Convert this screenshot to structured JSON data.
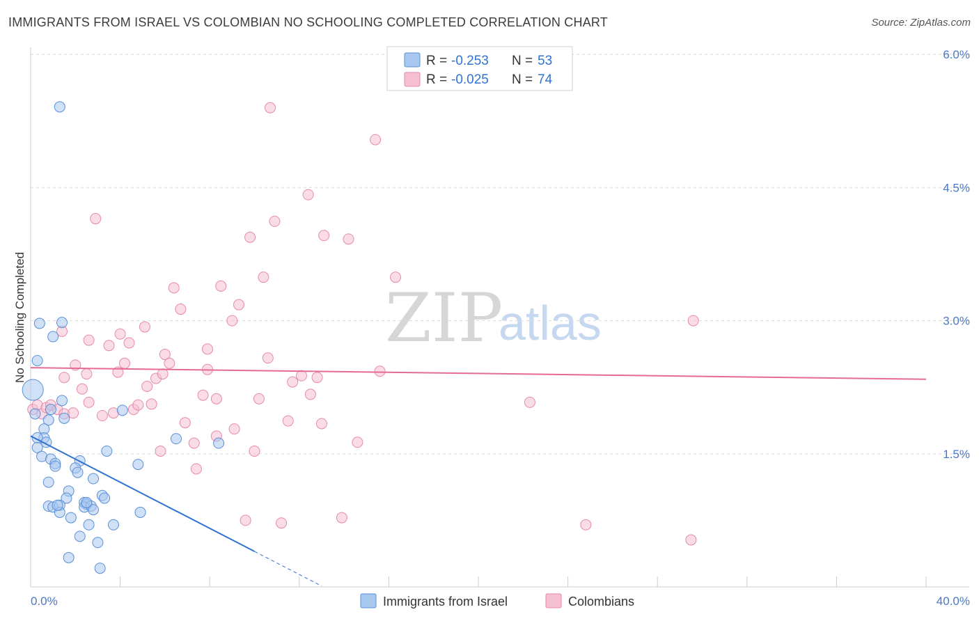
{
  "title": "IMMIGRANTS FROM ISRAEL VS COLOMBIAN NO SCHOOLING COMPLETED CORRELATION CHART",
  "source": "Source: ZipAtlas.com",
  "watermark": {
    "zip": "ZIP",
    "atlas": "atlas"
  },
  "colors": {
    "blue_fill": "#a9c8f0",
    "blue_stroke": "#5a8fd6",
    "blue_line": "#2f73d2",
    "pink_fill": "#f6bfd2",
    "pink_stroke": "#e58aaa",
    "pink_line": "#e56b96",
    "grid": "#dddddd",
    "axis_label": "#4a78c4"
  },
  "legend": {
    "r_label": "R =",
    "n_label": "N =",
    "series1": {
      "r": "-0.253",
      "n": "53"
    },
    "series2": {
      "r": "-0.025",
      "n": "74"
    }
  },
  "chart_data": {
    "type": "scatter",
    "title": "IMMIGRANTS FROM ISRAEL VS COLOMBIAN NO SCHOOLING COMPLETED CORRELATION CHART",
    "xlabel": "",
    "ylabel": "No Schooling Completed",
    "xlim": [
      0,
      40
    ],
    "ylim": [
      0,
      6.3
    ],
    "x_tick_labels": [
      "0.0%",
      "40.0%"
    ],
    "y_ticks": [
      1.5,
      3.0,
      4.5,
      6.0
    ],
    "y_tick_labels": [
      "1.5%",
      "3.0%",
      "4.5%",
      "6.0%"
    ],
    "series": [
      {
        "name": "Immigrants from Israel",
        "color": "blue",
        "regression": {
          "x0": 0.0,
          "y0": 1.7,
          "x1": 10.0,
          "y1": 0.4,
          "dash_to_x": 13.0
        },
        "points": [
          [
            0.1,
            2.22
          ],
          [
            1.3,
            5.41
          ],
          [
            0.3,
            2.55
          ],
          [
            0.4,
            2.97
          ],
          [
            1.4,
            2.98
          ],
          [
            1.0,
            2.82
          ],
          [
            1.4,
            2.1
          ],
          [
            1.5,
            1.9
          ],
          [
            0.8,
            1.88
          ],
          [
            0.6,
            1.78
          ],
          [
            0.6,
            1.68
          ],
          [
            0.3,
            1.68
          ],
          [
            0.7,
            1.63
          ],
          [
            0.3,
            1.57
          ],
          [
            0.5,
            1.47
          ],
          [
            0.9,
            1.44
          ],
          [
            1.1,
            1.39
          ],
          [
            1.1,
            1.36
          ],
          [
            2.2,
            1.42
          ],
          [
            2.0,
            1.34
          ],
          [
            2.1,
            1.29
          ],
          [
            0.8,
            1.18
          ],
          [
            2.8,
            1.22
          ],
          [
            3.4,
            1.53
          ],
          [
            4.1,
            1.99
          ],
          [
            4.8,
            1.38
          ],
          [
            6.5,
            1.67
          ],
          [
            8.4,
            1.62
          ],
          [
            1.7,
            1.08
          ],
          [
            1.6,
            1.0
          ],
          [
            3.2,
            1.03
          ],
          [
            3.3,
            1.0
          ],
          [
            0.8,
            0.91
          ],
          [
            1.0,
            0.9
          ],
          [
            1.3,
            0.92
          ],
          [
            2.4,
            0.95
          ],
          [
            2.5,
            0.93
          ],
          [
            2.4,
            0.9
          ],
          [
            2.7,
            0.91
          ],
          [
            2.8,
            0.87
          ],
          [
            1.3,
            0.84
          ],
          [
            1.8,
            0.78
          ],
          [
            4.9,
            0.84
          ],
          [
            2.6,
            0.7
          ],
          [
            3.7,
            0.7
          ],
          [
            2.2,
            0.57
          ],
          [
            3.0,
            0.5
          ],
          [
            1.7,
            0.33
          ],
          [
            3.1,
            0.21
          ],
          [
            0.2,
            1.95
          ],
          [
            0.9,
            2.0
          ],
          [
            2.5,
            0.95
          ],
          [
            1.2,
            0.92
          ]
        ]
      },
      {
        "name": "Colombians",
        "color": "pink",
        "regression": {
          "x0": 0.0,
          "y0": 2.47,
          "x1": 40.0,
          "y1": 2.34
        },
        "points": [
          [
            0.1,
            2.0
          ],
          [
            0.3,
            2.05
          ],
          [
            0.5,
            1.95
          ],
          [
            0.7,
            2.02
          ],
          [
            0.9,
            2.05
          ],
          [
            1.2,
            2.0
          ],
          [
            1.5,
            1.95
          ],
          [
            1.9,
            1.96
          ],
          [
            2.3,
            2.23
          ],
          [
            2.5,
            2.4
          ],
          [
            2.0,
            2.5
          ],
          [
            1.5,
            2.36
          ],
          [
            2.6,
            2.78
          ],
          [
            2.6,
            2.08
          ],
          [
            3.2,
            1.93
          ],
          [
            3.5,
            2.72
          ],
          [
            3.7,
            1.96
          ],
          [
            3.9,
            2.42
          ],
          [
            4.0,
            2.85
          ],
          [
            4.2,
            2.52
          ],
          [
            4.4,
            2.75
          ],
          [
            4.6,
            2.0
          ],
          [
            4.8,
            2.05
          ],
          [
            5.1,
            2.93
          ],
          [
            5.2,
            2.26
          ],
          [
            5.4,
            2.06
          ],
          [
            5.6,
            2.35
          ],
          [
            5.9,
            2.4
          ],
          [
            6.0,
            2.62
          ],
          [
            6.2,
            2.52
          ],
          [
            6.4,
            3.37
          ],
          [
            6.7,
            3.13
          ],
          [
            6.9,
            1.85
          ],
          [
            7.3,
            1.62
          ],
          [
            7.4,
            1.33
          ],
          [
            7.7,
            2.16
          ],
          [
            7.9,
            2.68
          ],
          [
            7.9,
            2.45
          ],
          [
            8.3,
            2.12
          ],
          [
            8.3,
            1.7
          ],
          [
            8.5,
            3.39
          ],
          [
            9.0,
            3.0
          ],
          [
            9.1,
            1.78
          ],
          [
            9.3,
            3.18
          ],
          [
            9.6,
            0.75
          ],
          [
            9.8,
            3.94
          ],
          [
            10.0,
            1.53
          ],
          [
            10.2,
            2.12
          ],
          [
            10.4,
            3.49
          ],
          [
            10.6,
            2.58
          ],
          [
            10.7,
            5.4
          ],
          [
            10.9,
            4.12
          ],
          [
            11.2,
            0.72
          ],
          [
            11.5,
            1.87
          ],
          [
            11.7,
            2.31
          ],
          [
            12.1,
            2.38
          ],
          [
            12.4,
            4.42
          ],
          [
            12.5,
            2.17
          ],
          [
            12.8,
            2.36
          ],
          [
            13.0,
            1.84
          ],
          [
            13.1,
            3.96
          ],
          [
            13.9,
            0.78
          ],
          [
            14.2,
            3.92
          ],
          [
            14.6,
            1.63
          ],
          [
            15.4,
            5.04
          ],
          [
            15.6,
            2.43
          ],
          [
            16.3,
            3.49
          ],
          [
            22.3,
            2.08
          ],
          [
            24.8,
            0.7
          ],
          [
            29.6,
            3.0
          ],
          [
            29.5,
            0.53
          ],
          [
            2.9,
            4.15
          ],
          [
            1.4,
            2.88
          ],
          [
            5.8,
            1.53
          ]
        ]
      }
    ]
  }
}
